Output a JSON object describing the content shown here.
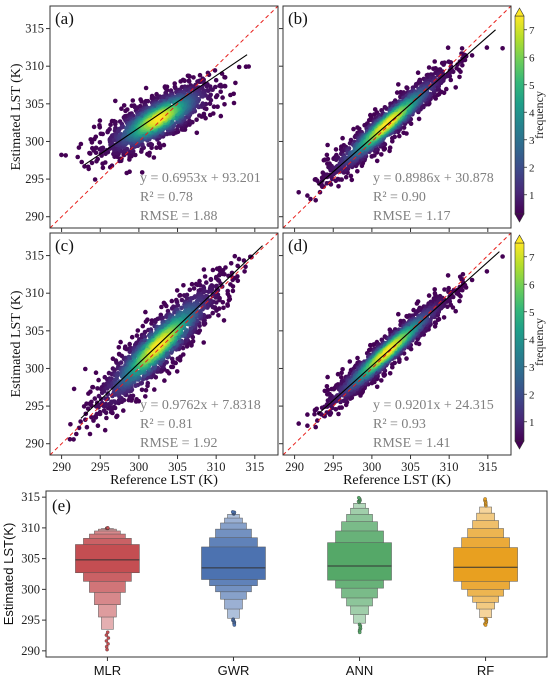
{
  "shared": {
    "y_axis_label": "Estimated LST (K)",
    "x_axis_label": "Reference LST (K)",
    "colorbar_label": "frequency",
    "colorbar_ticks": [
      "1",
      "2",
      "3",
      "4",
      "5",
      "6",
      "7"
    ],
    "colormap": [
      "#440154",
      "#482878",
      "#3e4989",
      "#31688e",
      "#26828e",
      "#1f9e89",
      "#35b779",
      "#6ece58",
      "#b5de2b",
      "#fde725"
    ],
    "identity_line_color": "#e8201c",
    "fit_line_color": "#000000",
    "annotation_color": "#808080"
  },
  "chart_data": [
    {
      "type": "scatter",
      "panel_label": "(a)",
      "xlim": [
        288.5,
        318
      ],
      "ylim": [
        288.5,
        318
      ],
      "xticks": [
        "290",
        "295",
        "300",
        "305",
        "310",
        "315"
      ],
      "yticks": [
        "290",
        "295",
        "300",
        "305",
        "310",
        "315"
      ],
      "fit": {
        "slope": 0.6953,
        "intercept": 93.201,
        "x_range": [
          293,
          314
        ]
      },
      "density": {
        "cx": 302.5,
        "cy": 303,
        "sx": 3.6,
        "sy": 2.4,
        "rho": 0.78,
        "ymax": 310,
        "ymin": 289
      },
      "equation": "y = 0.6953x + 93.201",
      "r2": "R² = 0.78",
      "rmse": "RMSE = 1.88"
    },
    {
      "type": "scatter",
      "panel_label": "(b)",
      "xlim": [
        288.5,
        318
      ],
      "ylim": [
        288.5,
        318
      ],
      "xticks": [
        "290",
        "295",
        "300",
        "305",
        "310",
        "315"
      ],
      "yticks": [
        "290",
        "295",
        "300",
        "305",
        "310",
        "315"
      ],
      "fit": {
        "slope": 0.8986,
        "intercept": 30.878,
        "x_range": [
          293,
          316
        ]
      },
      "density": {
        "cx": 302,
        "cy": 302.3,
        "sx": 3.9,
        "sy": 3.6,
        "rho": 0.95,
        "ymax": 312.5,
        "ymin": 292
      },
      "equation": "y = 0.8986x + 30.878",
      "r2": "R² = 0.90",
      "rmse": "RMSE = 1.17"
    },
    {
      "type": "scatter",
      "panel_label": "(c)",
      "xlim": [
        288.5,
        318
      ],
      "ylim": [
        288.5,
        318
      ],
      "xticks": [
        "290",
        "295",
        "300",
        "305",
        "310",
        "315"
      ],
      "yticks": [
        "290",
        "295",
        "300",
        "305",
        "310",
        "315"
      ],
      "fit": {
        "slope": 0.9762,
        "intercept": 7.8318,
        "x_range": [
          292.5,
          316
        ]
      },
      "density": {
        "cx": 302.5,
        "cy": 303,
        "sx": 4.0,
        "sy": 4.2,
        "rho": 0.9,
        "ymax": 315,
        "ymin": 290
      },
      "equation": "y = 0.9762x + 7.8318",
      "r2": "R² = 0.81",
      "rmse": "RMSE = 1.92"
    },
    {
      "type": "scatter",
      "panel_label": "(d)",
      "xlim": [
        288.5,
        318
      ],
      "ylim": [
        288.5,
        318
      ],
      "xticks": [
        "290",
        "295",
        "300",
        "305",
        "310",
        "315"
      ],
      "yticks": [
        "290",
        "295",
        "300",
        "305",
        "310",
        "315"
      ],
      "fit": {
        "slope": 0.9201,
        "intercept": 24.315,
        "x_range": [
          293,
          316.5
        ]
      },
      "density": {
        "cx": 302,
        "cy": 302.2,
        "sx": 3.9,
        "sy": 3.7,
        "rho": 0.96,
        "ymax": 315,
        "ymin": 292
      },
      "equation": "y = 0.9201x + 24.315",
      "r2": "R² = 0.93",
      "rmse": "RMSE = 1.41"
    },
    {
      "type": "boxen",
      "panel_label": "(e)",
      "ylabel": "Estimated LST(K)",
      "ylim": [
        289,
        316
      ],
      "yticks": [
        "290",
        "295",
        "300",
        "305",
        "310",
        "315"
      ],
      "categories": [
        "MLR",
        "GWR",
        "ANN",
        "RF"
      ],
      "colors": [
        "#c44e52",
        "#4c72b0",
        "#55a868",
        "#e8a020"
      ],
      "series": [
        {
          "median": 304.8,
          "levels": [
            [
              302.7,
              307.3
            ],
            [
              301.3,
              308.3
            ],
            [
              299.5,
              309.0
            ],
            [
              297.5,
              309.5
            ],
            [
              295.5,
              309.8
            ],
            [
              293.5,
              309.9
            ]
          ],
          "min": 290.2,
          "max": 310.0
        },
        {
          "median": 303.5,
          "levels": [
            [
              301.6,
              306.9
            ],
            [
              300.6,
              308.4
            ],
            [
              299.6,
              309.8
            ],
            [
              298.4,
              310.8
            ],
            [
              296.8,
              311.6
            ],
            [
              295.3,
              312.2
            ]
          ],
          "min": 294.2,
          "max": 312.6
        },
        {
          "median": 303.8,
          "levels": [
            [
              301.5,
              307.6
            ],
            [
              300.2,
              309.5
            ],
            [
              298.6,
              311.0
            ],
            [
              297.3,
              312.2
            ],
            [
              295.9,
              313.2
            ],
            [
              294.5,
              314.0
            ]
          ],
          "min": 293.0,
          "max": 314.9
        },
        {
          "median": 303.6,
          "levels": [
            [
              301.3,
              306.8
            ],
            [
              300.0,
              308.4
            ],
            [
              298.9,
              309.9
            ],
            [
              297.9,
              311.2
            ],
            [
              296.8,
              312.4
            ],
            [
              295.4,
              313.4
            ]
          ],
          "min": 294.2,
          "max": 314.7
        }
      ]
    }
  ]
}
